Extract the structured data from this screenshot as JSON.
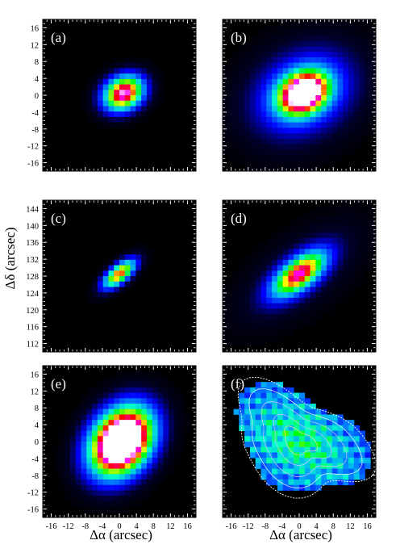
{
  "figure": {
    "xlabel": "Δα (arcsec)",
    "ylabel": "Δδ (arcsec)",
    "tick_color": "#ffffff",
    "panel_background": "#000000"
  },
  "chart_data": [
    {
      "type": "heatmap",
      "label": "(a)",
      "xlim": [
        -18,
        18
      ],
      "ylim": [
        -18,
        18
      ],
      "xticks": [
        -16,
        -12,
        -8,
        -4,
        0,
        4,
        8,
        12,
        16
      ],
      "yticks": [
        -16,
        -12,
        -8,
        -4,
        0,
        4,
        8,
        12,
        16
      ],
      "show_yticklabels": true,
      "show_xticklabels": false,
      "source": {
        "cx": 1,
        "cy": 0.5,
        "sigma_major": 3.6,
        "sigma_minor": 2.8,
        "angle_deg": 30,
        "peak": 0.98,
        "halo": 0.0
      }
    },
    {
      "type": "heatmap",
      "label": "(b)",
      "xlim": [
        -18,
        18
      ],
      "ylim": [
        -18,
        18
      ],
      "xticks": [
        -16,
        -12,
        -8,
        -4,
        0,
        4,
        8,
        12,
        16
      ],
      "yticks": [
        -16,
        -12,
        -8,
        -4,
        0,
        4,
        8,
        12,
        16
      ],
      "show_yticklabels": false,
      "show_xticklabels": false,
      "source": {
        "cx": 1,
        "cy": 0.5,
        "sigma_major": 4.2,
        "sigma_minor": 3.2,
        "angle_deg": 30,
        "peak": 1.0,
        "halo": 0.36
      }
    },
    {
      "type": "heatmap",
      "label": "(c)",
      "xlim": [
        110,
        146
      ],
      "ylim": [
        110,
        146
      ],
      "xticks": [
        112,
        116,
        120,
        124,
        128,
        132,
        136,
        140,
        144
      ],
      "yticks": [
        112,
        116,
        120,
        124,
        128,
        132,
        136,
        140,
        144
      ],
      "show_yticklabels": true,
      "show_xticklabels": false,
      "source": {
        "cx": 128,
        "cy": 128.5,
        "sigma_major": 3.4,
        "sigma_minor": 1.5,
        "angle_deg": 40,
        "peak": 0.82,
        "halo": 0.0
      }
    },
    {
      "type": "heatmap",
      "label": "(d)",
      "xlim": [
        110,
        146
      ],
      "ylim": [
        110,
        146
      ],
      "xticks": [
        112,
        116,
        120,
        124,
        128,
        132,
        136,
        140,
        144
      ],
      "yticks": [
        112,
        116,
        120,
        124,
        128,
        132,
        136,
        140,
        144
      ],
      "show_yticklabels": false,
      "show_xticklabels": false,
      "source": {
        "cx": 128,
        "cy": 128.5,
        "sigma_major": 5.2,
        "sigma_minor": 2.4,
        "angle_deg": 38,
        "peak": 0.8,
        "halo": 0.14
      }
    },
    {
      "type": "heatmap",
      "label": "(e)",
      "xlim": [
        -18,
        18
      ],
      "ylim": [
        -18,
        18
      ],
      "xticks": [
        -16,
        -12,
        -8,
        -4,
        0,
        4,
        8,
        12,
        16
      ],
      "yticks": [
        -16,
        -12,
        -8,
        -4,
        0,
        4,
        8,
        12,
        16
      ],
      "show_yticklabels": true,
      "show_xticklabels": true,
      "source": {
        "cx": 0.5,
        "cy": 0,
        "sigma_major": 6.2,
        "sigma_minor": 4.6,
        "angle_deg": 55,
        "peak": 1.45,
        "halo": 0.0
      }
    },
    {
      "type": "heatmap",
      "label": "(f)",
      "xlim": [
        -18,
        18
      ],
      "ylim": [
        -18,
        18
      ],
      "xticks": [
        -16,
        -12,
        -8,
        -4,
        0,
        4,
        8,
        12,
        16
      ],
      "yticks": [
        -16,
        -12,
        -8,
        -4,
        0,
        4,
        8,
        12,
        16
      ],
      "show_yticklabels": false,
      "show_xticklabels": true,
      "source": {
        "cx": 0,
        "cy": 0,
        "sigma_major": 9.5,
        "sigma_minor": 6,
        "angle_deg": -30,
        "peak": 0.55,
        "halo": 0.0
      }
    }
  ]
}
